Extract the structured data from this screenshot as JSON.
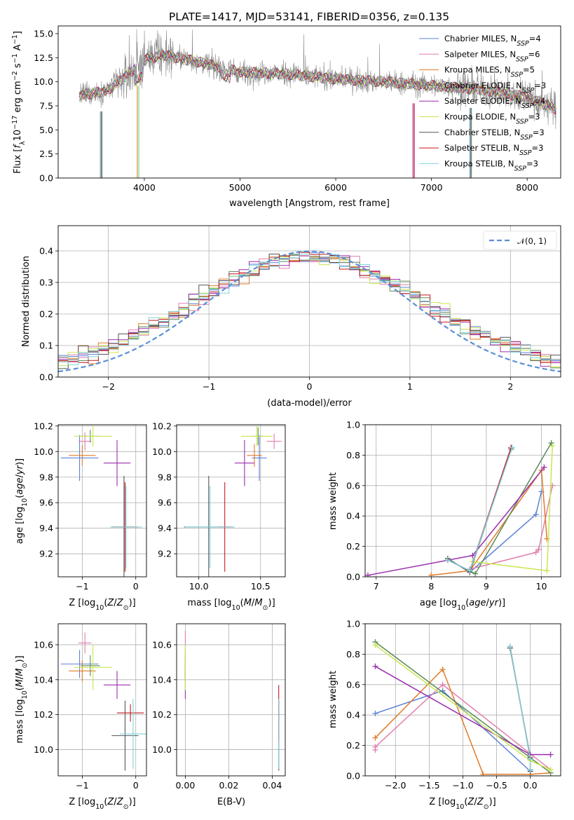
{
  "figure_title": "PLATE=1417, MJD=53141, FIBERID=0356, z=0.135",
  "series": [
    {
      "label": "Chabrier MILES, N",
      "sub": "SSP",
      "tail": "=4",
      "color": "#5b83d6"
    },
    {
      "label": "Salpeter MILES, N",
      "sub": "SSP",
      "tail": "=6",
      "color": "#e27fae"
    },
    {
      "label": "Kroupa MILES, N",
      "sub": "SSP",
      "tail": "=5",
      "color": "#e07b28"
    },
    {
      "label": "Chabrier ELODIE, N",
      "sub": "SSP",
      "tail": "=3",
      "color": "#5c8a58"
    },
    {
      "label": "Salpeter ELODIE, N",
      "sub": "SSP",
      "tail": "=4",
      "color": "#9b2eb0"
    },
    {
      "label": "Kroupa ELODIE, N",
      "sub": "SSP",
      "tail": "=3",
      "color": "#c9e650"
    },
    {
      "label": "Chabrier STELIB, N",
      "sub": "SSP",
      "tail": "=3",
      "color": "#555555"
    },
    {
      "label": "Salpeter STELIB, N",
      "sub": "SSP",
      "tail": "=3",
      "color": "#c2191f"
    },
    {
      "label": "Kroupa STELIB, N",
      "sub": "SSP",
      "tail": "=3",
      "color": "#7fd3dc"
    }
  ],
  "chart_data": [
    {
      "id": "spectrum",
      "type": "line",
      "xlabel": "wavelength [Angstrom, rest frame]",
      "ylabel": "Flux [f_λ 10^-17 erg cm^-2 s^-1 A^-1]",
      "xlim": [
        3100,
        8350
      ],
      "ylim": [
        0,
        15.8
      ],
      "xticks": [
        4000,
        5000,
        6000,
        7000,
        8000
      ],
      "yticks": [
        0.0,
        2.5,
        5.0,
        7.5,
        10.0,
        12.5,
        15.0
      ],
      "ytick_labels": [
        "0.0",
        "2.5",
        "5.0",
        "7.5",
        "10.0",
        "12.5",
        "15.0"
      ],
      "data_envelope": {
        "x_range": [
          3320,
          8300
        ],
        "continuum_points": [
          [
            3320,
            8.6
          ],
          [
            3600,
            9.0
          ],
          [
            3800,
            10.5
          ],
          [
            4000,
            12.3
          ],
          [
            4200,
            12.8
          ],
          [
            4500,
            12.2
          ],
          [
            5000,
            11.0
          ],
          [
            5500,
            10.8
          ],
          [
            6000,
            10.3
          ],
          [
            6500,
            10.0
          ],
          [
            7000,
            9.6
          ],
          [
            7500,
            9.2
          ],
          [
            8000,
            8.4
          ],
          [
            8300,
            7.2
          ]
        ],
        "drops_to_zero": [
          3540,
          3920,
          6800,
          7400
        ]
      },
      "grid": false,
      "legend": "upper-right"
    },
    {
      "id": "residuals",
      "type": "step",
      "xlabel": "(data-model)/error",
      "ylabel": "Normed distribution",
      "xlim": [
        -2.5,
        2.5
      ],
      "ylim": [
        0,
        0.48
      ],
      "xticks": [
        -2,
        -1,
        0,
        1,
        2
      ],
      "yticks": [
        0.0,
        0.1,
        0.2,
        0.3,
        0.4
      ],
      "ytick_labels": [
        "0.0",
        "0.1",
        "0.2",
        "0.3",
        "0.4"
      ],
      "bin_width": 0.1,
      "gaussian_label": "𝒩(0, 1)",
      "gaussian_color": "#5b8fd6",
      "grid": true,
      "legend": "upper-right"
    },
    {
      "id": "age_vs_Z",
      "type": "errorbar",
      "xlabel": "Z [log10(Z/Z⊙)]",
      "ylabel": "age [log10(age/yr)]",
      "xlim": [
        -1.45,
        0.2
      ],
      "ylim": [
        9.02,
        10.21
      ],
      "xticks": [
        -1,
        0
      ],
      "yticks": [
        9.2,
        9.4,
        9.6,
        9.8,
        10.0,
        10.2
      ],
      "ytick_labels": [
        "9.2",
        "9.4",
        "9.6",
        "9.8",
        "10.0",
        "10.2"
      ],
      "points": [
        {
          "x": -1.05,
          "y": 9.95,
          "xerr": 0.35,
          "yerr": 0.18
        },
        {
          "x": -0.95,
          "y": 10.08,
          "xerr": 0.12,
          "yerr": 0.07
        },
        {
          "x": -1.0,
          "y": 9.97,
          "xerr": 0.25,
          "yerr": 0.08
        },
        {
          "x": -0.85,
          "y": 10.12,
          "xerr": 0.18,
          "yerr": 0.05
        },
        {
          "x": -0.35,
          "y": 9.91,
          "xerr": 0.25,
          "yerr": 0.18
        },
        {
          "x": -0.8,
          "y": 10.12,
          "xerr": 0.35,
          "yerr": 0.08
        },
        {
          "x": -0.22,
          "y": 9.41,
          "xerr": 0.2,
          "yerr": 0.4
        },
        {
          "x": -0.2,
          "y": 9.41,
          "xerr": 0.25,
          "yerr": 0.35
        },
        {
          "x": -0.18,
          "y": 9.41,
          "xerr": 0.3,
          "yerr": 0.32
        }
      ],
      "grid": true
    },
    {
      "id": "age_vs_mass",
      "type": "errorbar",
      "xlabel": "mass [log10(M/M⊙)]",
      "ylabel": "",
      "xlim": [
        9.82,
        10.7
      ],
      "ylim": [
        9.02,
        10.21
      ],
      "xticks": [
        10.0,
        10.5
      ],
      "xtick_labels": [
        "10.0",
        "10.5"
      ],
      "yticks": [
        9.2,
        9.4,
        9.6,
        9.8,
        10.0,
        10.2
      ],
      "ytick_labels": [
        "9.2",
        "9.4",
        "9.6",
        "9.8",
        "10.0",
        "10.2"
      ],
      "points": [
        {
          "x": 10.49,
          "y": 9.95,
          "xerr": 0.06,
          "yerr": 0.18
        },
        {
          "x": 10.61,
          "y": 10.08,
          "xerr": 0.06,
          "yerr": 0.06
        },
        {
          "x": 10.45,
          "y": 9.97,
          "xerr": 0.06,
          "yerr": 0.09
        },
        {
          "x": 10.48,
          "y": 10.12,
          "xerr": 0.04,
          "yerr": 0.07
        },
        {
          "x": 10.37,
          "y": 9.91,
          "xerr": 0.08,
          "yerr": 0.18
        },
        {
          "x": 10.47,
          "y": 10.12,
          "xerr": 0.13,
          "yerr": 0.08
        },
        {
          "x": 10.08,
          "y": 9.41,
          "xerr": 0.2,
          "yerr": 0.4
        },
        {
          "x": 10.21,
          "y": 9.41,
          "xerr": 0.05,
          "yerr": 0.35
        },
        {
          "x": 10.09,
          "y": 9.41,
          "xerr": 0.2,
          "yerr": 0.32
        }
      ],
      "grid": true
    },
    {
      "id": "mass_weight_vs_age",
      "type": "line",
      "xlabel": "age [log10(age/yr)]",
      "ylabel": "mass weight",
      "xlim": [
        6.8,
        10.35
      ],
      "ylim": [
        0,
        1.0
      ],
      "xticks": [
        7,
        8,
        9,
        10
      ],
      "yticks": [
        0.0,
        0.2,
        0.4,
        0.6,
        0.8,
        1.0
      ],
      "ytick_labels": [
        "0.0",
        "0.2",
        "0.4",
        "0.6",
        "0.8",
        "1.0"
      ],
      "lines": [
        [
          [
            8.7,
            0.03
          ],
          [
            9.9,
            0.41
          ],
          [
            10.0,
            0.56
          ]
        ],
        [
          [
            8.7,
            0.05
          ],
          [
            9.9,
            0.16
          ],
          [
            9.95,
            0.18
          ],
          [
            10.2,
            0.6
          ]
        ],
        [
          [
            8.0,
            0.01
          ],
          [
            8.7,
            0.04
          ],
          [
            10.0,
            0.7
          ],
          [
            10.1,
            0.25
          ]
        ],
        [
          [
            8.3,
            0.11
          ],
          [
            8.8,
            0.02
          ],
          [
            10.18,
            0.88
          ]
        ],
        [
          [
            6.85,
            0.01
          ],
          [
            8.75,
            0.14
          ],
          [
            10.05,
            0.72
          ]
        ],
        [
          [
            8.75,
            0.1
          ],
          [
            10.1,
            0.04
          ],
          [
            10.2,
            0.86
          ]
        ],
        [
          [
            8.3,
            0.12
          ],
          [
            8.7,
            0.03
          ],
          [
            9.45,
            0.84
          ]
        ],
        [
          [
            8.3,
            0.11
          ],
          [
            8.7,
            0.04
          ],
          [
            9.45,
            0.85
          ]
        ],
        [
          [
            8.3,
            0.11
          ],
          [
            8.7,
            0.04
          ],
          [
            9.47,
            0.85
          ]
        ]
      ],
      "grid": true
    },
    {
      "id": "mass_vs_Z",
      "type": "errorbar",
      "xlabel": "Z [log10(Z/Z⊙)]",
      "ylabel": "mass [log10(M/M⊙)]",
      "xlim": [
        -1.45,
        0.2
      ],
      "ylim": [
        9.85,
        10.72
      ],
      "xticks": [
        -1,
        0
      ],
      "yticks": [
        10.0,
        10.2,
        10.4,
        10.6
      ],
      "ytick_labels": [
        "10.0",
        "10.2",
        "10.4",
        "10.6"
      ],
      "points": [
        {
          "x": -1.05,
          "y": 10.49,
          "xerr": 0.35,
          "yerr": 0.08
        },
        {
          "x": -0.95,
          "y": 10.61,
          "xerr": 0.12,
          "yerr": 0.06
        },
        {
          "x": -1.0,
          "y": 10.45,
          "xerr": 0.25,
          "yerr": 0.06
        },
        {
          "x": -0.85,
          "y": 10.48,
          "xerr": 0.18,
          "yerr": 0.06
        },
        {
          "x": -0.35,
          "y": 10.37,
          "xerr": 0.25,
          "yerr": 0.08
        },
        {
          "x": -0.8,
          "y": 10.47,
          "xerr": 0.35,
          "yerr": 0.13
        },
        {
          "x": -0.2,
          "y": 10.08,
          "xerr": 0.25,
          "yerr": 0.2
        },
        {
          "x": -0.1,
          "y": 10.21,
          "xerr": 0.25,
          "yerr": 0.05
        },
        {
          "x": -0.05,
          "y": 10.09,
          "xerr": 0.25,
          "yerr": 0.2
        }
      ],
      "grid": true
    },
    {
      "id": "mass_vs_ebv",
      "type": "errorbar",
      "xlabel": "E(B-V)",
      "ylabel": "",
      "xlim": [
        -0.004,
        0.046
      ],
      "ylim": [
        9.85,
        10.72
      ],
      "xticks": [
        0.0,
        0.02,
        0.04
      ],
      "xtick_labels": [
        "0.00",
        "0.02",
        "0.04"
      ],
      "yticks": [
        10.0,
        10.2,
        10.4,
        10.6
      ],
      "ytick_labels": [
        "10.0",
        "10.2",
        "10.4",
        "10.6"
      ],
      "points": [
        {
          "x": 0.0,
          "y": 10.49,
          "xerr": 0,
          "yerr": 0.08
        },
        {
          "x": 0.0,
          "y": 10.61,
          "xerr": 0,
          "yerr": 0.07
        },
        {
          "x": 0.0,
          "y": 10.45,
          "xerr": 0,
          "yerr": 0.06
        },
        {
          "x": 0.0,
          "y": 10.48,
          "xerr": 0,
          "yerr": 0.06
        },
        {
          "x": 0.0,
          "y": 10.37,
          "xerr": 0,
          "yerr": 0.08
        },
        {
          "x": 0.0,
          "y": 10.47,
          "xerr": 0,
          "yerr": 0.13
        },
        {
          "x": 0.043,
          "y": 10.08,
          "xerr": 0,
          "yerr": 0.2
        },
        {
          "x": 0.043,
          "y": 10.21,
          "xerr": 0,
          "yerr": 0.16
        },
        {
          "x": 0.043,
          "y": 10.09,
          "xerr": 0,
          "yerr": 0.2
        }
      ],
      "grid": true
    },
    {
      "id": "mass_weight_vs_Z",
      "type": "line",
      "xlabel": "Z [log10(Z/Z⊙)]",
      "ylabel": "mass weight",
      "xlim": [
        -2.45,
        0.45
      ],
      "ylim": [
        0,
        1.0
      ],
      "xticks": [
        -2.0,
        -1.5,
        -1.0,
        -0.5,
        0.0
      ],
      "xtick_labels": [
        "−2.0",
        "−1.5",
        "−1.0",
        "−0.5",
        "0.0"
      ],
      "yticks": [
        0.0,
        0.2,
        0.4,
        0.6,
        0.8,
        1.0
      ],
      "ytick_labels": [
        "0.0",
        "0.2",
        "0.4",
        "0.6",
        "0.8",
        "1.0"
      ],
      "lines": [
        [
          [
            -2.3,
            0.41
          ],
          [
            -1.3,
            0.56
          ],
          [
            0.0,
            0.03
          ]
        ],
        [
          [
            -2.3,
            0.17
          ],
          [
            -2.3,
            0.19
          ],
          [
            -1.3,
            0.6
          ],
          [
            0.3,
            0.04
          ]
        ],
        [
          [
            -2.3,
            0.25
          ],
          [
            -1.3,
            0.7
          ],
          [
            -0.7,
            0.01
          ],
          [
            0.0,
            0.01
          ],
          [
            0.3,
            0.02
          ]
        ],
        [
          [
            -2.3,
            0.88
          ],
          [
            0.3,
            0.02
          ]
        ],
        [
          [
            -2.3,
            0.72
          ],
          [
            0.0,
            0.14
          ],
          [
            0.3,
            0.14
          ]
        ],
        [
          [
            -2.3,
            0.86
          ],
          [
            0.0,
            0.1
          ],
          [
            0.3,
            0.04
          ]
        ],
        [
          [
            -0.3,
            0.84
          ],
          [
            0.0,
            0.12
          ],
          [
            0.0,
            0.03
          ]
        ],
        [
          [
            -0.3,
            0.85
          ],
          [
            0.0,
            0.11
          ],
          [
            0.0,
            0.04
          ]
        ],
        [
          [
            -0.3,
            0.85
          ],
          [
            0.0,
            0.11
          ],
          [
            0.0,
            0.04
          ]
        ]
      ],
      "grid": true
    }
  ]
}
